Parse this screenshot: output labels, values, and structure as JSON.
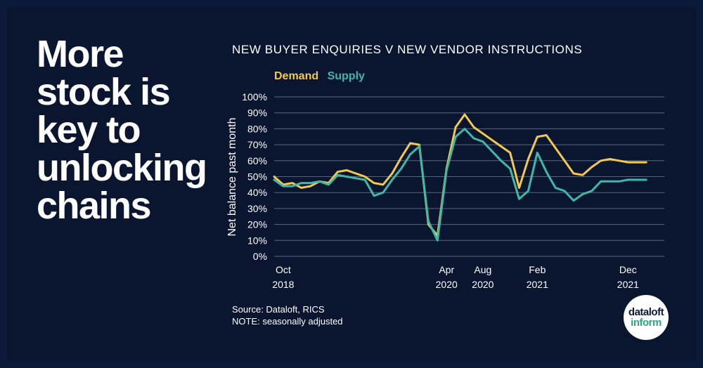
{
  "headline": [
    "More",
    "stock is",
    "key to",
    "unlocking",
    "chains"
  ],
  "colors": {
    "background": "#0a1530",
    "demand": "#f2c94c",
    "supply": "#3fb8a8",
    "grid": "#5a6680",
    "text": "#ffffff"
  },
  "chart_data": {
    "type": "line",
    "title": "NEW BUYER ENQUIRIES V NEW VENDOR INSTRUCTIONS",
    "ylabel": "Net balance past month",
    "xlabel": "",
    "ylim": [
      0,
      100
    ],
    "yticks": [
      "0%",
      "10%",
      "20%",
      "30%",
      "40%",
      "50%",
      "60%",
      "70%",
      "80%",
      "90%",
      "100%"
    ],
    "xrange": [
      0,
      43
    ],
    "xticks": [
      {
        "x": 1,
        "line1": "Oct",
        "line2": "2018"
      },
      {
        "x": 19,
        "line1": "Apr",
        "line2": "2020"
      },
      {
        "x": 23,
        "line1": "Aug",
        "line2": "2020"
      },
      {
        "x": 29,
        "line1": "Feb",
        "line2": "2021"
      },
      {
        "x": 39,
        "line1": "Dec",
        "line2": "2021"
      }
    ],
    "series": [
      {
        "name": "Demand",
        "color": "#f2c94c",
        "x": [
          0,
          1,
          2,
          3,
          4,
          5,
          6,
          7,
          8,
          9,
          10,
          11,
          12,
          13,
          14,
          15,
          16,
          17,
          18,
          19,
          20,
          21,
          22,
          23,
          24,
          25,
          26,
          27,
          28,
          29,
          30,
          31,
          32,
          33,
          34,
          35,
          36,
          37,
          38,
          39,
          40,
          41
        ],
        "values": [
          50,
          45,
          46,
          43,
          44,
          47,
          46,
          53,
          54,
          52,
          50,
          46,
          45,
          52,
          62,
          71,
          70,
          20,
          13,
          55,
          81,
          89,
          81,
          77,
          73,
          69,
          65,
          43,
          61,
          75,
          76,
          68,
          60,
          52,
          51,
          56,
          60,
          61,
          60,
          59,
          59,
          59
        ]
      },
      {
        "name": "Supply",
        "color": "#3fb8a8",
        "x": [
          0,
          1,
          2,
          3,
          4,
          5,
          6,
          7,
          8,
          9,
          10,
          11,
          12,
          13,
          14,
          15,
          16,
          17,
          18,
          19,
          20,
          21,
          22,
          23,
          24,
          25,
          26,
          27,
          28,
          29,
          30,
          31,
          32,
          33,
          34,
          35,
          36,
          37,
          38,
          39,
          40,
          41
        ],
        "values": [
          48,
          44,
          44,
          46,
          46,
          47,
          45,
          51,
          50,
          49,
          48,
          38,
          40,
          48,
          55,
          64,
          69,
          22,
          10,
          54,
          75,
          80,
          74,
          72,
          66,
          60,
          55,
          36,
          41,
          65,
          53,
          43,
          41,
          35,
          39,
          41,
          47,
          47,
          47,
          48,
          48,
          48
        ]
      }
    ],
    "legend_position": "top-left"
  },
  "footer": {
    "source": "Source: Dataloft, RICS",
    "note": "NOTE: seasonally adjusted"
  },
  "logo": {
    "line1": "dataloft",
    "line2": "inform"
  }
}
